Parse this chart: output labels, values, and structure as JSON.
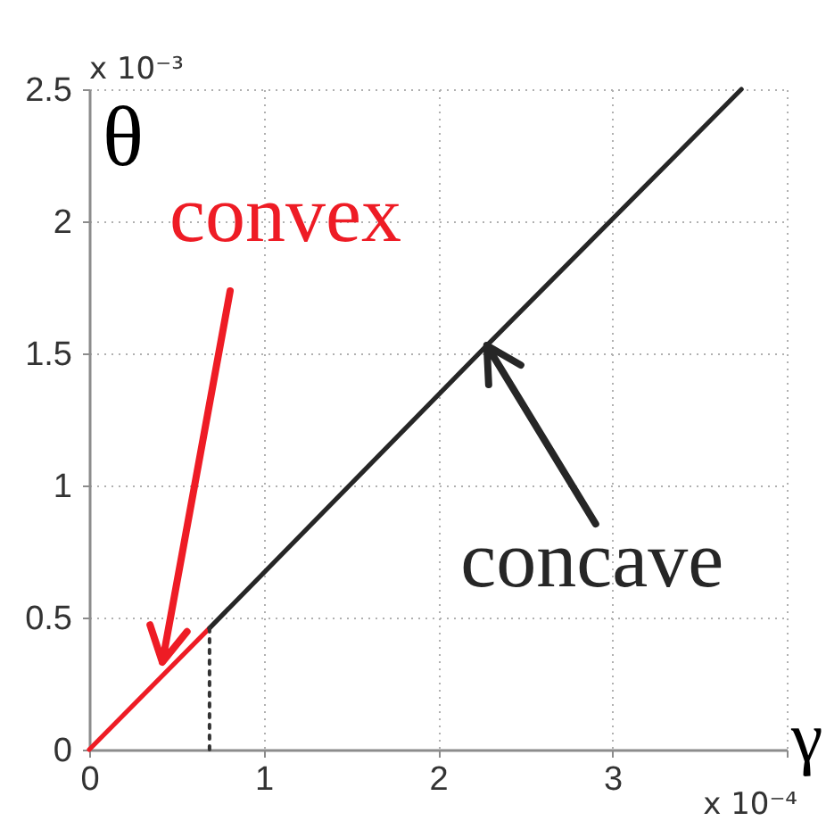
{
  "chart_data": {
    "type": "line",
    "xlabel": "γ",
    "ylabel": "θ",
    "xlim": [
      0,
      4
    ],
    "ylim": [
      0,
      2.5
    ],
    "xticks": [
      0,
      1,
      2,
      3,
      {
        "value": 4,
        "label": null
      }
    ],
    "yticks": [
      0,
      0.5,
      1,
      1.5,
      2,
      2.5
    ],
    "grid": true,
    "line_style": "solid",
    "series": [
      {
        "color": "#ee1c25",
        "x": [
          0,
          0.69
        ],
        "values": [
          0,
          0.46
        ]
      },
      {
        "color": "#262626",
        "x": [
          0.69,
          2.28,
          3.74
        ],
        "values": [
          0.46,
          1.53,
          2.5
        ]
      },
      {
        "color": "#333333",
        "x": [
          0.69,
          0.69
        ],
        "values": [
          0,
          0.46
        ],
        "line_style": "dotted"
      }
    ],
    "annotations": [
      "x 10⁻³",
      "x 10⁻⁴",
      "convex",
      {
        "text": "concave",
        "x": 2.28,
        "y": 1.53
      }
    ]
  }
}
